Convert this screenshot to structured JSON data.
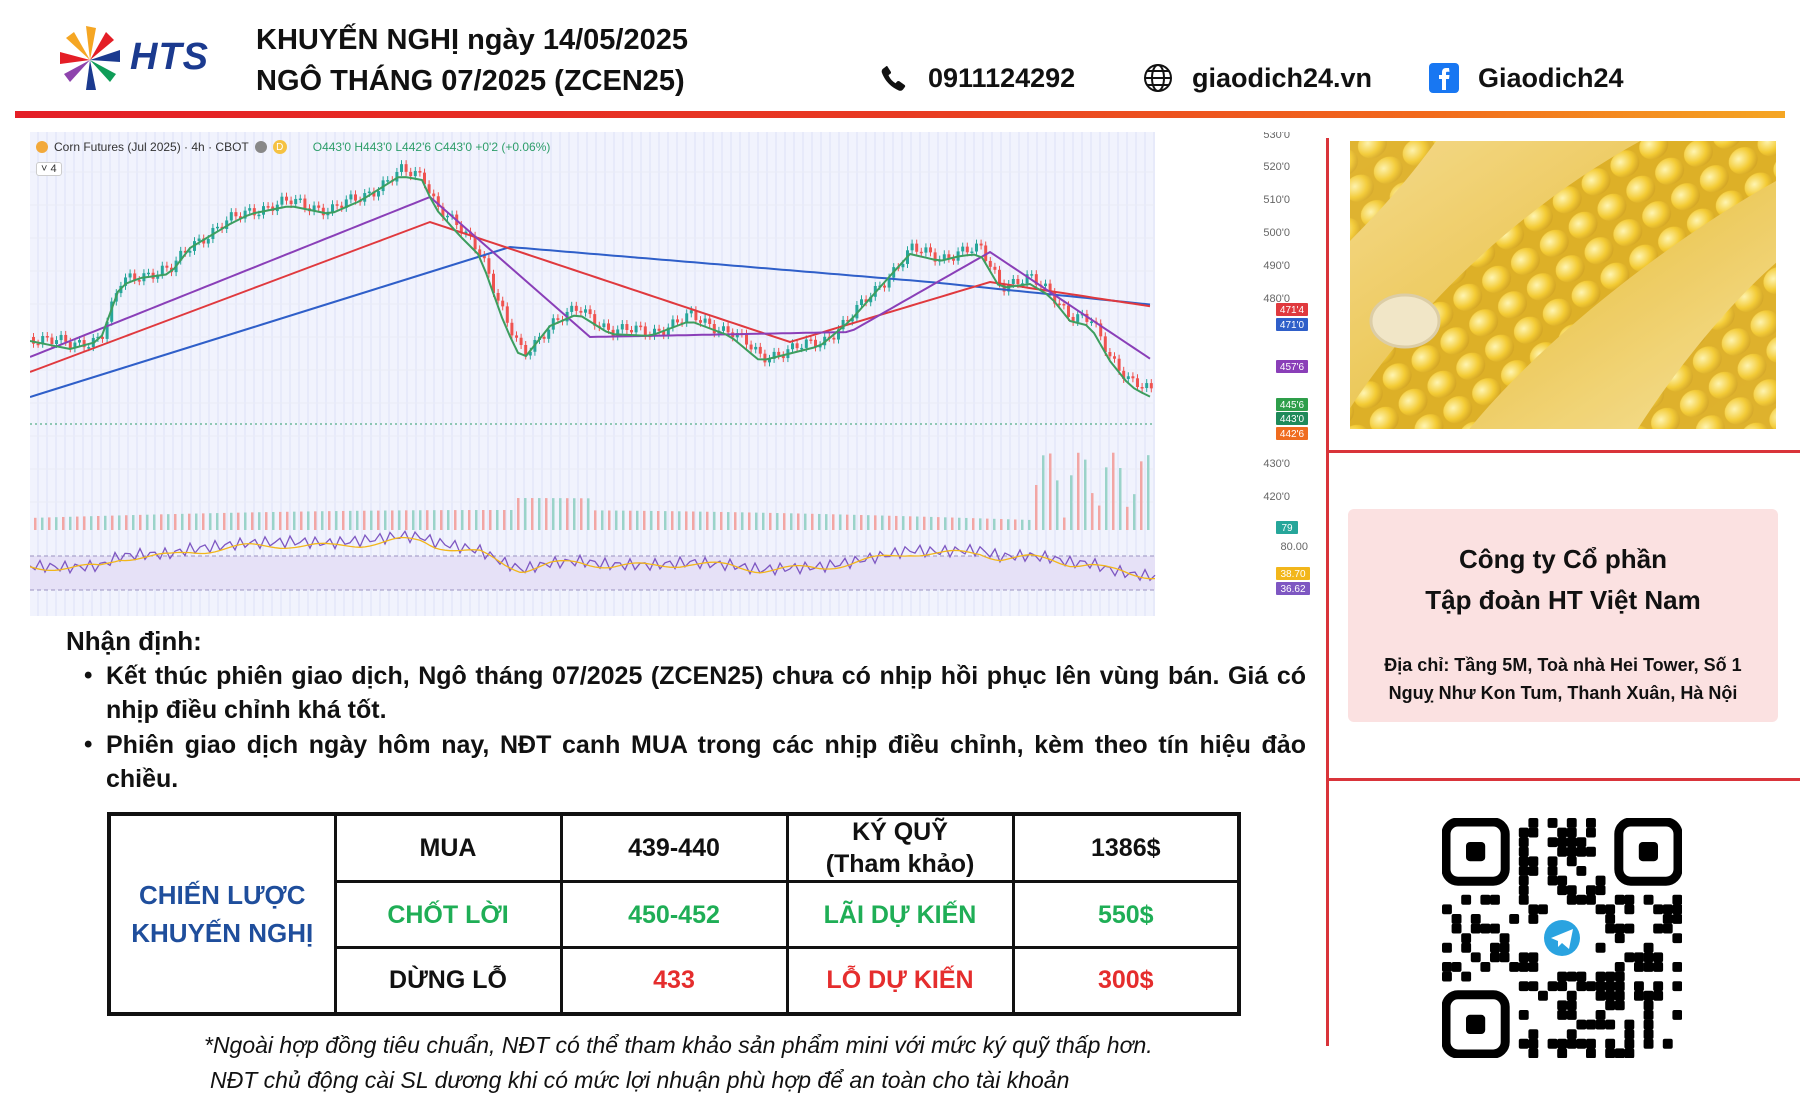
{
  "brand": {
    "logo_text": "HTS"
  },
  "header": {
    "line1": "KHUYẾN NGHỊ ngày 14/05/2025",
    "line2": "NGÔ THÁNG 07/2025 (ZCEN25)",
    "phone": "0911124292",
    "website": "giaodich24.vn",
    "facebook": "Giaodich24"
  },
  "chart": {
    "legend_symbol": "Corn Futures (Jul 2025) · 4h · CBOT",
    "legend_ohlc": "O443'0 H443'0 L442'6 C443'0 +0'2 (+0.06%)",
    "indicator_count": "4",
    "price_ticks": [
      "530'0",
      "520'0",
      "510'0",
      "500'0",
      "490'0",
      "480'0",
      "430'0",
      "420'0"
    ],
    "price_badges": [
      {
        "text": "471'4",
        "color": "#e0393e"
      },
      {
        "text": "471'0",
        "color": "#2f5fc9"
      },
      {
        "text": "457'6",
        "color": "#8a3fb8"
      },
      {
        "text": "445'6",
        "color": "#2e9e4a"
      },
      {
        "text": "443'0",
        "color": "#1f8a5a"
      },
      {
        "text": "442'6",
        "color": "#ef6c1f"
      }
    ],
    "volume_badge": "79",
    "rsi_top": "80.00",
    "rsi_badges": [
      {
        "text": "38.70",
        "color": "#f2b61b"
      },
      {
        "text": "36.62",
        "color": "#7e57c2"
      }
    ],
    "colors": {
      "ma_red": "#e0393e",
      "ma_blue": "#2f5fc9",
      "ma_purple": "#8a3fb8",
      "up": "#26a69a",
      "down": "#ef5350"
    }
  },
  "analysis": {
    "title": "Nhận định:",
    "bullets": [
      "Kết thúc phiên giao dịch, Ngô tháng 07/2025 (ZCEN25) chưa có nhịp hồi phục lên vùng bán. Giá có nhịp điều chỉnh khá tốt.",
      "Phiên giao dịch ngày hôm nay, NĐT canh MUA trong các nhịp điều chỉnh, kèm theo tín hiệu đảo chiều."
    ]
  },
  "strategy": {
    "label_line1": "CHIẾN LƯỢC",
    "label_line2": "KHUYẾN NGHỊ",
    "rows": [
      {
        "action": "MUA",
        "price": "439-440",
        "metric_line1": "KÝ QUỸ",
        "metric_line2": "(Tham khảo)",
        "value": "1386$"
      },
      {
        "action": "CHỐT LỜI",
        "price": "450-452",
        "metric_line1": "LÃI DỰ KIẾN",
        "metric_line2": "",
        "value": "550$"
      },
      {
        "action": "DỪNG LỖ",
        "price": "433",
        "metric_line1": "LỖ DỰ KIẾN",
        "metric_line2": "",
        "value": "300$"
      }
    ]
  },
  "footnote": {
    "line1": "*Ngoài hợp đồng tiêu chuẩn, NĐT có thể tham khảo sản phẩm mini với mức ký quỹ thấp hơn.",
    "line2": "NĐT chủ động cài SL dương khi có mức lợi nhuận phù hợp để an toàn cho tài khoản"
  },
  "company": {
    "name_line1": "Công ty Cổ phần",
    "name_line2": "Tập đoàn HT Việt Nam",
    "address": "Địa chỉ: Tầng 5M, Toà nhà Hei Tower, Số 1 Nguỵ Như Kon Tum, Thanh Xuân, Hà Nội"
  },
  "icons": {
    "phone": "phone-icon",
    "website": "globe-icon",
    "facebook": "facebook-icon",
    "qr_center": "telegram-icon"
  }
}
